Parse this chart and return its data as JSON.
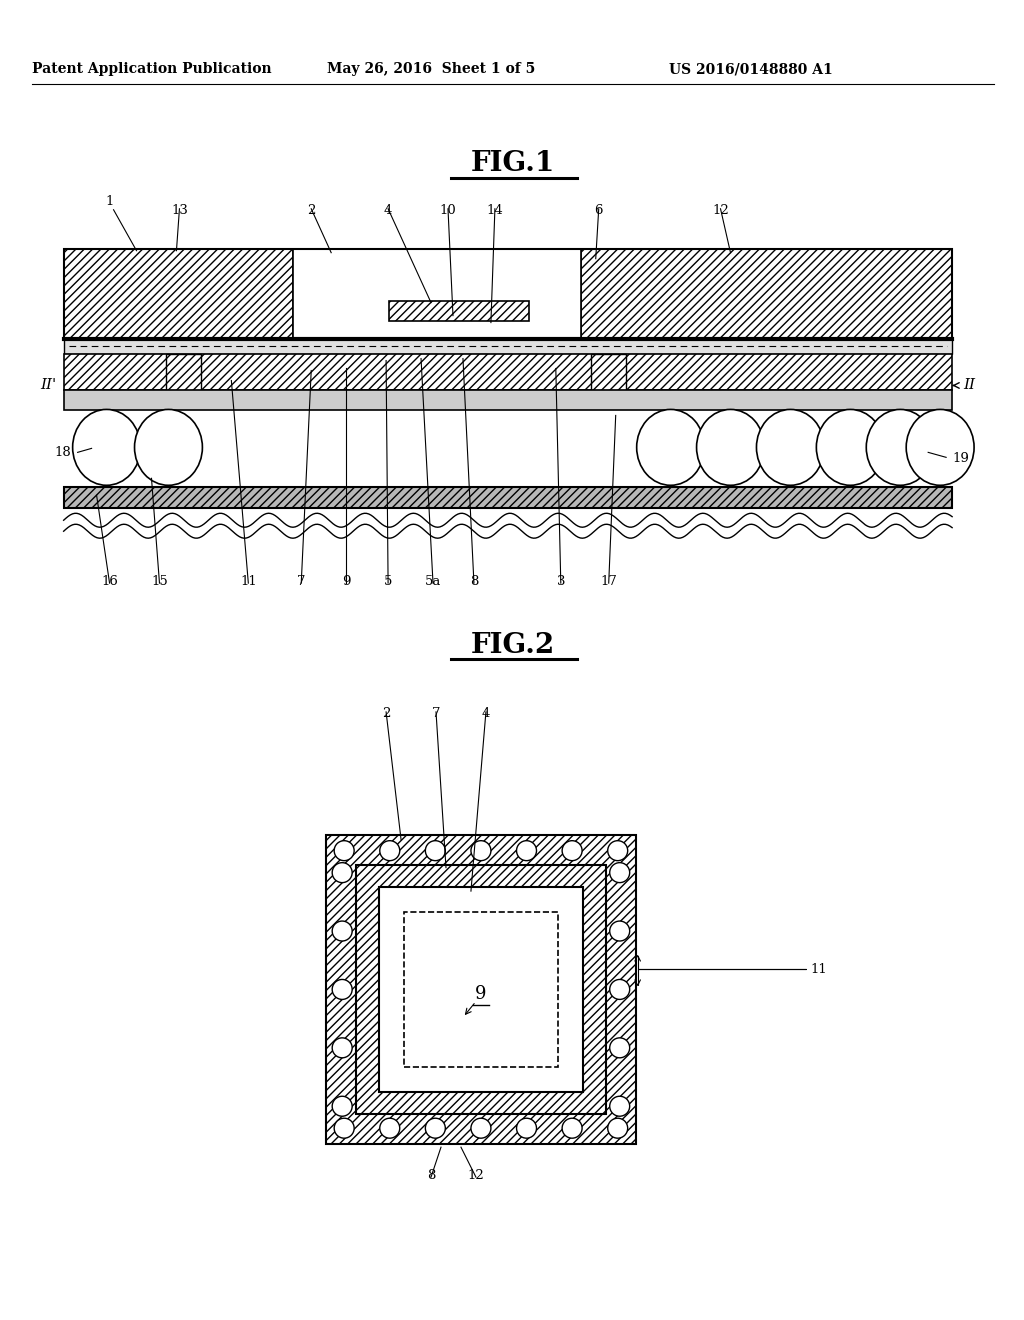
{
  "bg_color": "#ffffff",
  "header_text": "Patent Application Publication",
  "header_date": "May 26, 2016  Sheet 1 of 5",
  "header_patent": "US 2016/0148880 A1",
  "fig1_title": "FIG.1",
  "fig2_title": "FIG.2"
}
